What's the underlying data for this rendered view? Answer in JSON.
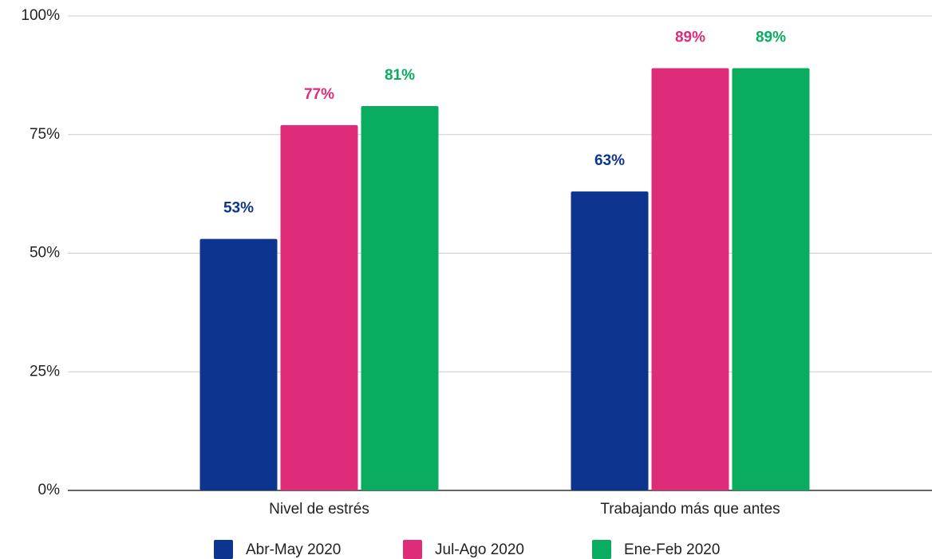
{
  "chart_data": {
    "type": "bar",
    "categories": [
      "Nivel de estrés",
      "Trabajando más que antes"
    ],
    "series": [
      {
        "name": "Abr-May 2020",
        "color": "#0d3590",
        "values": [
          53,
          63
        ],
        "value_labels": [
          "53%",
          "63%"
        ]
      },
      {
        "name": "Jul-Ago 2020",
        "color": "#de2b7a",
        "values": [
          77,
          89
        ],
        "value_labels": [
          "77%",
          "89%"
        ]
      },
      {
        "name": "Ene-Feb 2020",
        "color": "#0aad5f",
        "values": [
          81,
          89
        ],
        "value_labels": [
          "81%",
          "89%"
        ]
      }
    ],
    "ylim": [
      0,
      100
    ],
    "yticks": [
      {
        "value": 0,
        "label": "0%"
      },
      {
        "value": 25,
        "label": "25%"
      },
      {
        "value": 50,
        "label": "50%"
      },
      {
        "value": 75,
        "label": "75%"
      },
      {
        "value": 100,
        "label": "100%"
      }
    ],
    "grid": true,
    "legend": "bottom"
  }
}
